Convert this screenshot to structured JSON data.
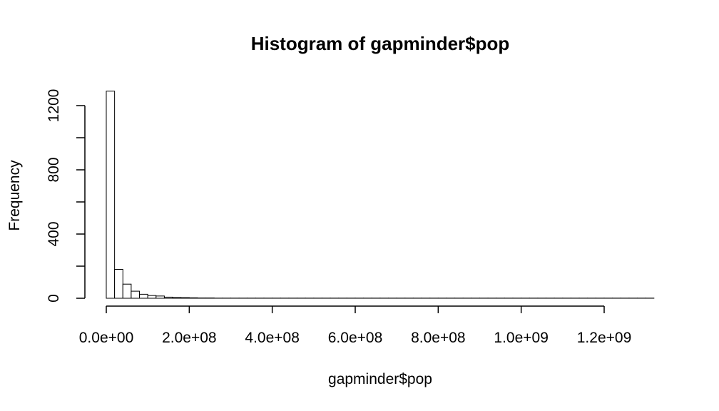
{
  "chart_data": {
    "type": "bar",
    "title": "Histogram of gapminder$pop",
    "xlabel": "gapminder$pop",
    "ylabel": "Frequency",
    "bin_width": 20000000,
    "bin_start": 0,
    "values": [
      1290,
      180,
      88,
      44,
      25,
      17,
      14,
      7,
      5,
      4,
      3,
      2,
      2,
      1,
      1,
      1,
      1,
      1,
      1,
      1,
      1,
      1,
      1,
      1,
      1,
      1,
      1,
      1,
      1,
      1,
      1,
      1,
      1,
      1,
      1,
      1,
      1,
      1,
      1,
      1,
      1,
      1,
      1,
      1,
      1,
      1,
      1,
      1,
      1,
      1,
      1,
      1,
      1,
      1,
      1,
      1,
      1,
      1,
      1,
      1,
      1,
      1,
      1,
      1,
      1,
      1
    ],
    "xlim": [
      0,
      1320000000
    ],
    "ylim": [
      0,
      1290
    ],
    "x_ticks": [
      0,
      200000000,
      400000000,
      600000000,
      800000000,
      1000000000,
      1200000000
    ],
    "x_tick_labels": [
      "0.0e+00",
      "2.0e+08",
      "4.0e+08",
      "6.0e+08",
      "8.0e+08",
      "1.0e+09",
      "1.2e+09"
    ],
    "y_ticks": [
      0,
      200,
      400,
      600,
      800,
      1000,
      1200
    ],
    "y_tick_labels": [
      "0",
      "",
      "400",
      "",
      "800",
      "",
      "1200"
    ],
    "grid": false,
    "legend": "none",
    "bar_fill": "#ffffff",
    "bar_stroke": "#000000"
  }
}
